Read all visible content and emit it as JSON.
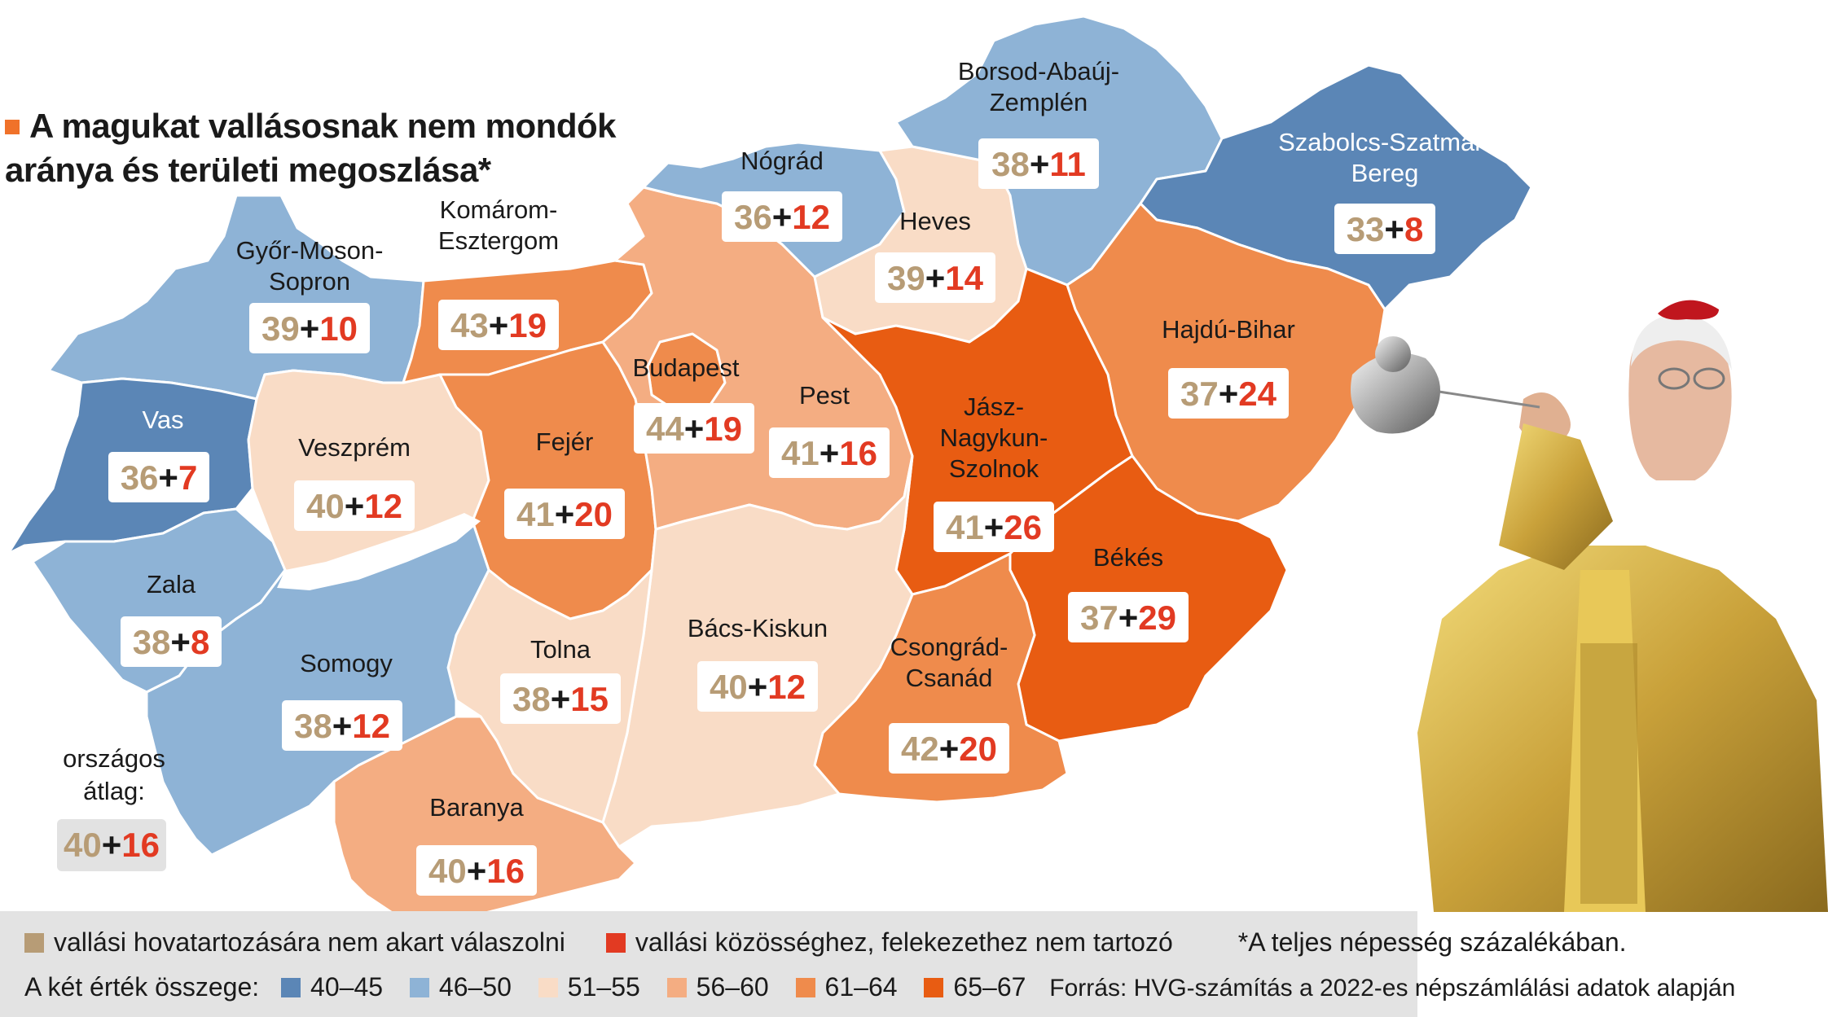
{
  "title": "A magukat vallásosnak nem mondók aránya és területi megoszlása*",
  "colors": {
    "c40_45": "#5b86b6",
    "c46_50": "#8eb3d6",
    "c51_55": "#f9dcc6",
    "c56_60": "#f4ad82",
    "c61_64": "#ef8b4c",
    "c65_67": "#e85c12",
    "undecided": "#b79c76",
    "none": "#e23a22"
  },
  "counties": [
    {
      "name_lines": [
        "Győr-Moson-",
        "Sopron"
      ],
      "a": "39",
      "b": "10",
      "sum_class": "46–50"
    },
    {
      "name_lines": [
        "Komárom-",
        "Esztergom"
      ],
      "a": "43",
      "b": "19",
      "sum_class": "61–64"
    },
    {
      "name_lines": [
        "Nógrád"
      ],
      "a": "36",
      "b": "12",
      "sum_class": "46–50"
    },
    {
      "name_lines": [
        "Borsod-Abaúj-",
        "Zemplén"
      ],
      "a": "38",
      "b": "11",
      "sum_class": "46–50"
    },
    {
      "name_lines": [
        "Szabolcs-Szatmár-",
        "Bereg"
      ],
      "a": "33",
      "b": "8",
      "sum_class": "40–45"
    },
    {
      "name_lines": [
        "Heves"
      ],
      "a": "39",
      "b": "14",
      "sum_class": "51–55"
    },
    {
      "name_lines": [
        "Vas"
      ],
      "a": "36",
      "b": "7",
      "sum_class": "40–45"
    },
    {
      "name_lines": [
        "Veszprém"
      ],
      "a": "40",
      "b": "12",
      "sum_class": "51–55"
    },
    {
      "name_lines": [
        "Fejér"
      ],
      "a": "41",
      "b": "20",
      "sum_class": "61–64"
    },
    {
      "name_lines": [
        "Budapest"
      ],
      "a": "44",
      "b": "19",
      "sum_class": "61–64"
    },
    {
      "name_lines": [
        "Pest"
      ],
      "a": "41",
      "b": "16",
      "sum_class": "56–60"
    },
    {
      "name_lines": [
        "Jász-",
        "Nagykun-",
        "Szolnok"
      ],
      "a": "41",
      "b": "26",
      "sum_class": "65–67"
    },
    {
      "name_lines": [
        "Hajdú-Bihar"
      ],
      "a": "37",
      "b": "24",
      "sum_class": "61–64"
    },
    {
      "name_lines": [
        "Zala"
      ],
      "a": "38",
      "b": "8",
      "sum_class": "46–50"
    },
    {
      "name_lines": [
        "Somogy"
      ],
      "a": "38",
      "b": "12",
      "sum_class": "46–50"
    },
    {
      "name_lines": [
        "Tolna"
      ],
      "a": "38",
      "b": "15",
      "sum_class": "51–55"
    },
    {
      "name_lines": [
        "Bács-Kiskun"
      ],
      "a": "40",
      "b": "12",
      "sum_class": "51–55"
    },
    {
      "name_lines": [
        "Csongrád-",
        "Csanád"
      ],
      "a": "42",
      "b": "20",
      "sum_class": "61–64"
    },
    {
      "name_lines": [
        "Békés"
      ],
      "a": "37",
      "b": "29",
      "sum_class": "65–67"
    },
    {
      "name_lines": [
        "Baranya"
      ],
      "a": "40",
      "b": "16",
      "sum_class": "56–60"
    }
  ],
  "national": {
    "label_line1": "országos",
    "label_line2": "átlag:",
    "a": "40",
    "b": "16"
  },
  "legend": {
    "undecided_label": "vallási hovatartozására nem akart válaszolni",
    "none_label": "vallási közösséghez, felekezethez nem tartozó",
    "footnote": "*A teljes népesség  százalékában.",
    "sum_label": "A két érték összege:",
    "ranges": [
      "40–45",
      "46–50",
      "51–55",
      "56–60",
      "61–64",
      "65–67"
    ],
    "source": "Forrás: HVG-számítás a 2022-es népszámlálási adatok alapján"
  }
}
